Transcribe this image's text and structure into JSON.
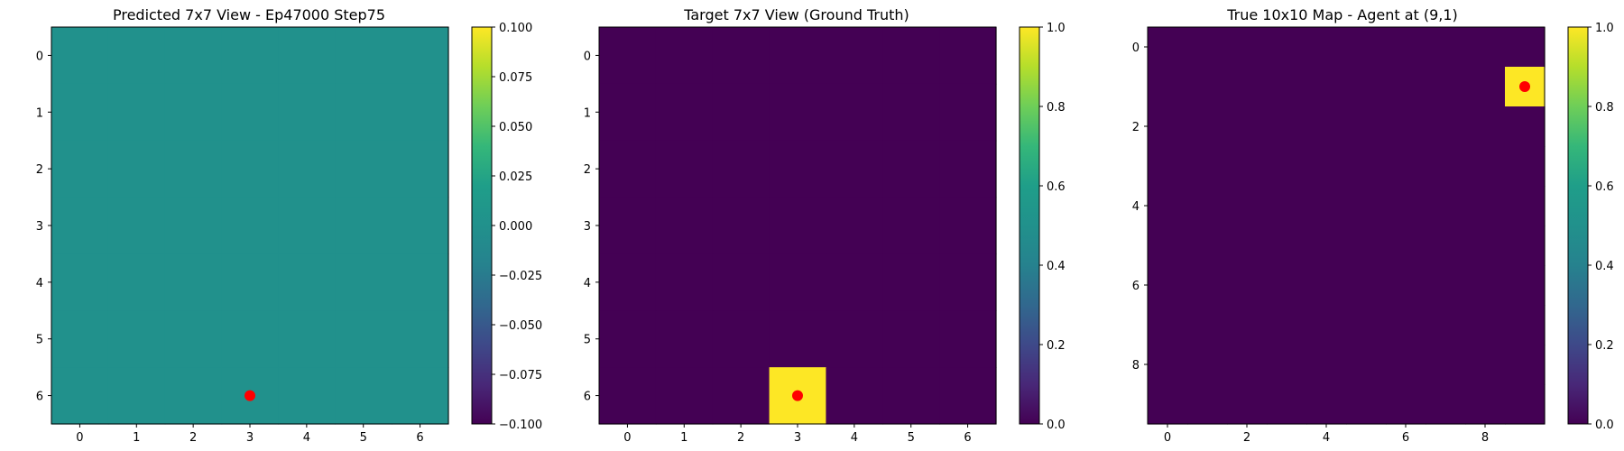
{
  "chart_data": [
    {
      "type": "heatmap",
      "title": "Predicted 7x7 View - Ep47000 Step75",
      "grid_size": 7,
      "xlim": [
        -0.5,
        6.5
      ],
      "ylim": [
        6.5,
        -0.5
      ],
      "xticks": [
        0,
        1,
        2,
        3,
        4,
        5,
        6
      ],
      "yticks": [
        0,
        1,
        2,
        3,
        4,
        5,
        6
      ],
      "colormap": "viridis",
      "values": [
        [
          0,
          0,
          0,
          0,
          0,
          0,
          0
        ],
        [
          0,
          0,
          0,
          0,
          0,
          0,
          0
        ],
        [
          0,
          0,
          0,
          0,
          0,
          0,
          0
        ],
        [
          0,
          0,
          0,
          0,
          0,
          0,
          0
        ],
        [
          0,
          0,
          0,
          0,
          0,
          0,
          0
        ],
        [
          0,
          0,
          0,
          0,
          0,
          0,
          0
        ],
        [
          0,
          0,
          0,
          0,
          0,
          0,
          0
        ]
      ],
      "vmin": -0.1,
      "vmax": 0.1,
      "colorbar_ticks": [
        -0.1,
        -0.075,
        -0.05,
        -0.025,
        0.0,
        0.025,
        0.05,
        0.075,
        0.1
      ],
      "colorbar_tick_labels": [
        "−0.100",
        "−0.075",
        "−0.050",
        "−0.025",
        "0.000",
        "0.025",
        "0.050",
        "0.075",
        "0.100"
      ],
      "marker": {
        "x": 3,
        "y": 6,
        "color": "#ff0000"
      }
    },
    {
      "type": "heatmap",
      "title": "Target 7x7 View (Ground Truth)",
      "grid_size": 7,
      "xlim": [
        -0.5,
        6.5
      ],
      "ylim": [
        6.5,
        -0.5
      ],
      "xticks": [
        0,
        1,
        2,
        3,
        4,
        5,
        6
      ],
      "yticks": [
        0,
        1,
        2,
        3,
        4,
        5,
        6
      ],
      "colormap": "viridis",
      "values": [
        [
          0,
          0,
          0,
          0,
          0,
          0,
          0
        ],
        [
          0,
          0,
          0,
          0,
          0,
          0,
          0
        ],
        [
          0,
          0,
          0,
          0,
          0,
          0,
          0
        ],
        [
          0,
          0,
          0,
          0,
          0,
          0,
          0
        ],
        [
          0,
          0,
          0,
          0,
          0,
          0,
          0
        ],
        [
          0,
          0,
          0,
          0,
          0,
          0,
          0
        ],
        [
          0,
          0,
          0,
          1,
          0,
          0,
          0
        ]
      ],
      "vmin": 0.0,
      "vmax": 1.0,
      "colorbar_ticks": [
        0.0,
        0.2,
        0.4,
        0.6,
        0.8,
        1.0
      ],
      "colorbar_tick_labels": [
        "0.0",
        "0.2",
        "0.4",
        "0.6",
        "0.8",
        "1.0"
      ],
      "marker": {
        "x": 3,
        "y": 6,
        "color": "#ff0000"
      }
    },
    {
      "type": "heatmap",
      "title": "True 10x10 Map - Agent at (9,1)",
      "grid_size": 10,
      "xlim": [
        -0.5,
        9.5
      ],
      "ylim": [
        9.5,
        -0.5
      ],
      "xticks": [
        0,
        2,
        4,
        6,
        8
      ],
      "yticks": [
        0,
        2,
        4,
        6,
        8
      ],
      "colormap": "viridis",
      "values": [
        [
          0,
          0,
          0,
          0,
          0,
          0,
          0,
          0,
          0,
          0
        ],
        [
          0,
          0,
          0,
          0,
          0,
          0,
          0,
          0,
          0,
          1
        ],
        [
          0,
          0,
          0,
          0,
          0,
          0,
          0,
          0,
          0,
          0
        ],
        [
          0,
          0,
          0,
          0,
          0,
          0,
          0,
          0,
          0,
          0
        ],
        [
          0,
          0,
          0,
          0,
          0,
          0,
          0,
          0,
          0,
          0
        ],
        [
          0,
          0,
          0,
          0,
          0,
          0,
          0,
          0,
          0,
          0
        ],
        [
          0,
          0,
          0,
          0,
          0,
          0,
          0,
          0,
          0,
          0
        ],
        [
          0,
          0,
          0,
          0,
          0,
          0,
          0,
          0,
          0,
          0
        ],
        [
          0,
          0,
          0,
          0,
          0,
          0,
          0,
          0,
          0,
          0
        ],
        [
          0,
          0,
          0,
          0,
          0,
          0,
          0,
          0,
          0,
          0
        ]
      ],
      "vmin": 0.0,
      "vmax": 1.0,
      "colorbar_ticks": [
        0.0,
        0.2,
        0.4,
        0.6,
        0.8,
        1.0
      ],
      "colorbar_tick_labels": [
        "0.0",
        "0.2",
        "0.4",
        "0.6",
        "0.8",
        "1.0"
      ],
      "marker": {
        "x": 9,
        "y": 1,
        "color": "#ff0000"
      }
    }
  ]
}
